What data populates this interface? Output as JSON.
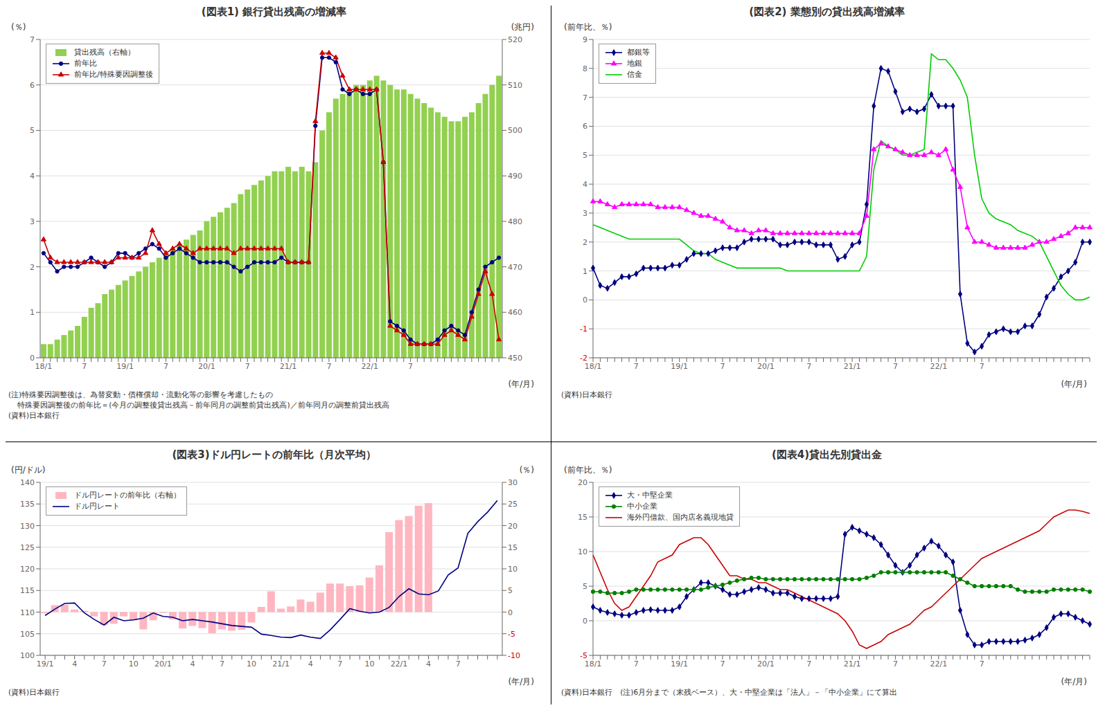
{
  "chart_data": [
    {
      "type": "line",
      "title": "(図表1)  銀行貸出残高の増減率",
      "xlabel": "(年/月)",
      "ylabel": "(％)",
      "y2label": "(兆円)",
      "annotations": [
        "(注)特殊要因調整後は、為替変動・債権償却・流動化等の影響を考慮したもの",
        "    特殊要因調整後の前年比＝(今月の調整後貸出残高－前年同月の調整前貸出残高)／前年同月の調整前貸出残高",
        "(資料)日本銀行"
      ],
      "categories": [
        "18/1",
        null,
        null,
        null,
        null,
        null,
        "7",
        null,
        null,
        null,
        null,
        null,
        "19/1",
        null,
        null,
        null,
        null,
        null,
        "7",
        null,
        null,
        null,
        null,
        null,
        "20/1",
        null,
        null,
        null,
        null,
        null,
        "7",
        null,
        null,
        null,
        null,
        null,
        "21/1",
        null,
        null,
        null,
        null,
        null,
        "7",
        null,
        null,
        null,
        null,
        null,
        "22/1",
        null,
        null,
        null,
        null,
        null,
        "7",
        null,
        null,
        null,
        null,
        null,
        null,
        null,
        null,
        null,
        null,
        null,
        null,
        null
      ],
      "series": [
        {
          "name": "貸出残高（右軸）",
          "type": "bar",
          "axis": "y2",
          "color": "#92D050",
          "values": [
            453,
            453,
            454,
            455,
            456,
            457,
            459,
            461,
            462,
            464,
            465,
            466,
            467,
            468,
            469,
            470,
            471,
            472,
            473,
            474,
            475,
            476,
            477,
            478,
            480,
            481,
            482,
            483,
            484,
            486,
            487,
            488,
            489,
            490,
            491,
            491,
            492,
            491,
            492,
            491,
            493,
            500,
            504,
            507,
            508,
            509,
            510,
            510,
            511,
            512,
            511,
            510,
            509,
            509,
            508,
            507,
            506,
            505,
            504,
            503,
            502,
            502,
            503,
            504,
            506,
            508,
            510,
            512
          ]
        },
        {
          "name": "前年比",
          "color": "#000080",
          "marker": "circle",
          "values": [
            2.3,
            2.1,
            1.9,
            2.0,
            2.0,
            2.0,
            2.1,
            2.2,
            2.1,
            2.0,
            2.1,
            2.3,
            2.3,
            2.2,
            2.3,
            2.4,
            2.5,
            2.4,
            2.2,
            2.3,
            2.4,
            2.3,
            2.2,
            2.1,
            2.1,
            2.1,
            2.1,
            2.1,
            2.0,
            1.9,
            2.0,
            2.1,
            2.1,
            2.1,
            2.1,
            2.2,
            2.1,
            2.1,
            2.1,
            2.1,
            5.1,
            6.6,
            6.6,
            6.5,
            5.9,
            5.8,
            5.9,
            5.8,
            5.8,
            5.9,
            4.3,
            0.8,
            0.7,
            0.6,
            0.4,
            0.3,
            0.3,
            0.3,
            0.4,
            0.6,
            0.7,
            0.6,
            0.5,
            1.0,
            1.5,
            2.0,
            2.1,
            2.2
          ]
        },
        {
          "name": "前年比/特殊要因調整後",
          "color": "#CC0000",
          "marker": "triangle",
          "values": [
            2.6,
            2.2,
            2.1,
            2.1,
            2.1,
            2.1,
            2.1,
            2.1,
            2.1,
            2.1,
            2.1,
            2.2,
            2.2,
            2.2,
            2.2,
            2.3,
            2.8,
            2.5,
            2.3,
            2.4,
            2.5,
            2.4,
            2.3,
            2.4,
            2.4,
            2.4,
            2.4,
            2.4,
            2.3,
            2.4,
            2.4,
            2.4,
            2.4,
            2.4,
            2.4,
            2.4,
            2.1,
            2.1,
            2.1,
            2.1,
            5.2,
            6.7,
            6.7,
            6.6,
            6.2,
            5.9,
            5.9,
            5.9,
            5.9,
            5.9,
            4.3,
            0.7,
            0.6,
            0.5,
            0.3,
            0.3,
            0.3,
            0.3,
            0.3,
            0.5,
            0.6,
            0.5,
            0.4,
            0.9,
            1.4,
            1.9,
            1.4,
            0.4
          ]
        }
      ],
      "ylim": [
        0,
        7
      ],
      "yticks": [
        0,
        1,
        2,
        3,
        4,
        5,
        6,
        7
      ],
      "y2lim": [
        450,
        520
      ],
      "y2ticks": [
        450,
        460,
        470,
        480,
        490,
        500,
        510,
        520
      ],
      "grid": true,
      "legend": "upper left"
    },
    {
      "type": "line",
      "title": "(図表2)  業態別の貸出残高増減率",
      "xlabel": "(年/月)",
      "ylabel": "(前年比、％)",
      "annotations": [
        "(資料)日本銀行"
      ],
      "categories": [
        "18/1",
        null,
        null,
        null,
        null,
        null,
        "7",
        null,
        null,
        null,
        null,
        null,
        "19/1",
        null,
        null,
        null,
        null,
        null,
        "7",
        null,
        null,
        null,
        null,
        null,
        "20/1",
        null,
        null,
        null,
        null,
        null,
        "7",
        null,
        null,
        null,
        null,
        null,
        "21/1",
        null,
        null,
        null,
        null,
        null,
        "7",
        null,
        null,
        null,
        null,
        null,
        "22/1",
        null,
        null,
        null,
        null,
        null,
        "7",
        null,
        null,
        null,
        null,
        null,
        null,
        null,
        null,
        null,
        null,
        null,
        null,
        null,
        null,
        null
      ],
      "series": [
        {
          "name": "都銀等",
          "color": "#000080",
          "marker": "diamond",
          "values": [
            1.1,
            0.5,
            0.4,
            0.6,
            0.8,
            0.8,
            0.9,
            1.1,
            1.1,
            1.1,
            1.1,
            1.2,
            1.2,
            1.4,
            1.6,
            1.6,
            1.6,
            1.7,
            1.8,
            1.8,
            1.8,
            2.0,
            2.1,
            2.1,
            2.1,
            2.1,
            1.9,
            1.9,
            2.0,
            2.0,
            2.0,
            1.9,
            1.9,
            1.9,
            1.4,
            1.5,
            1.9,
            2.0,
            3.3,
            6.7,
            8.0,
            7.9,
            7.2,
            6.5,
            6.6,
            6.5,
            6.6,
            7.1,
            6.7,
            6.7,
            6.7,
            0.2,
            -1.5,
            -1.8,
            -1.6,
            -1.2,
            -1.1,
            -1.0,
            -1.1,
            -1.1,
            -0.9,
            -0.9,
            -0.5,
            0.1,
            0.4,
            0.8,
            1.0,
            1.3,
            2.0,
            2.0
          ]
        },
        {
          "name": "地銀",
          "color": "#FF00FF",
          "marker": "triangle",
          "values": [
            3.4,
            3.4,
            3.3,
            3.2,
            3.3,
            3.3,
            3.3,
            3.3,
            3.3,
            3.2,
            3.2,
            3.2,
            3.2,
            3.1,
            3.0,
            2.9,
            2.9,
            2.8,
            2.7,
            2.5,
            2.4,
            2.4,
            2.3,
            2.4,
            2.4,
            2.3,
            2.3,
            2.3,
            2.3,
            2.3,
            2.3,
            2.3,
            2.3,
            2.3,
            2.3,
            2.3,
            2.3,
            2.3,
            2.9,
            5.2,
            5.4,
            5.3,
            5.2,
            5.1,
            5.0,
            5.0,
            5.0,
            5.1,
            5.0,
            5.2,
            4.5,
            3.9,
            2.5,
            2.0,
            2.0,
            1.9,
            1.8,
            1.8,
            1.8,
            1.8,
            1.8,
            1.9,
            2.0,
            2.0,
            2.1,
            2.2,
            2.3,
            2.5,
            2.5,
            2.5
          ]
        },
        {
          "name": "信金",
          "color": "#00CC00",
          "values": [
            2.6,
            2.5,
            2.4,
            2.3,
            2.2,
            2.1,
            2.1,
            2.1,
            2.1,
            2.1,
            2.1,
            2.1,
            2.1,
            1.9,
            1.7,
            1.6,
            1.6,
            1.4,
            1.3,
            1.2,
            1.1,
            1.1,
            1.1,
            1.1,
            1.1,
            1.1,
            1.1,
            1.0,
            1.0,
            1.0,
            1.0,
            1.0,
            1.0,
            1.0,
            1.0,
            1.0,
            1.0,
            1.0,
            1.5,
            4.5,
            5.5,
            5.3,
            5.2,
            5.0,
            5.0,
            5.1,
            5.2,
            8.5,
            8.3,
            8.3,
            8.0,
            7.6,
            7.0,
            5.0,
            3.5,
            3.0,
            2.8,
            2.7,
            2.6,
            2.4,
            2.3,
            2.2,
            2.0,
            1.5,
            1.0,
            0.5,
            0.2,
            0.0,
            0.0,
            0.1
          ]
        }
      ],
      "ylim": [
        -2,
        9
      ],
      "yticks": [
        -2,
        -1,
        0,
        1,
        2,
        3,
        4,
        5,
        6,
        7,
        8,
        9
      ],
      "grid": true,
      "legend": "upper left"
    },
    {
      "type": "line",
      "title": "(図表3)ドル円レートの前年比（月次平均）",
      "xlabel": "(年/月)",
      "ylabel": "(円/ドル)",
      "y2label": "(％)",
      "annotations": [
        "(資料)日本銀行"
      ],
      "categories": [
        "19/1",
        null,
        null,
        "4",
        null,
        null,
        "7",
        null,
        null,
        "10",
        null,
        null,
        "20/1",
        null,
        null,
        "4",
        null,
        null,
        "7",
        null,
        null,
        "10",
        null,
        null,
        "21/1",
        null,
        null,
        "4",
        null,
        null,
        "7",
        null,
        null,
        "10",
        null,
        null,
        "22/1",
        null,
        null,
        "4",
        null,
        null,
        "7",
        null,
        null,
        null,
        null
      ],
      "series": [
        {
          "name": "ドル円レートの前年比（右軸）",
          "type": "bar",
          "axis": "y2",
          "color": "#FFB6C1",
          "values": [
            -0.3,
            1.6,
            1.7,
            0.6,
            0.3,
            -1.0,
            -3.0,
            -2.7,
            -1.0,
            -1.9,
            -4.0,
            -1.9,
            -0.2,
            -1.7,
            -3.8,
            -3.2,
            -3.7,
            -4.9,
            -4.0,
            -4.3,
            -4.1,
            -2.4,
            1.2,
            4.8,
            0.8,
            1.3,
            2.9,
            2.4,
            4.5,
            6.6,
            6.6,
            6.0,
            6.2,
            8.0,
            10.8,
            18.5,
            21.3,
            22.2,
            24.6,
            25.2,
            null,
            null,
            null,
            null,
            null,
            null,
            null
          ]
        },
        {
          "name": "ドル円レート",
          "color": "#000080",
          "values": [
            109.2,
            110.7,
            112.0,
            112.1,
            109.8,
            108.3,
            107.0,
            108.8,
            108.0,
            108.2,
            108.6,
            109.8,
            109.0,
            108.8,
            108.0,
            108.3,
            108.0,
            107.7,
            107.3,
            106.9,
            106.7,
            106.5,
            104.9,
            104.6,
            104.2,
            104.1,
            104.7,
            104.2,
            103.9,
            105.9,
            108.3,
            110.8,
            110.2,
            109.8,
            110.0,
            111.1,
            113.6,
            115.4,
            114.2,
            114.0,
            114.9,
            118.6,
            120.2,
            128.2,
            130.9,
            133.1,
            135.8
          ]
        }
      ],
      "ylim": [
        100,
        140
      ],
      "yticks": [
        100,
        105,
        110,
        115,
        120,
        125,
        130,
        135,
        140
      ],
      "y2lim": [
        -10,
        30
      ],
      "y2ticks": [
        -10,
        -5,
        0,
        5,
        10,
        15,
        20,
        25,
        30
      ],
      "grid": true,
      "legend": "upper left"
    },
    {
      "type": "line",
      "title": "(図表4)貸出先別貸出金",
      "xlabel": "(年/月)",
      "ylabel": "(前年比、％)",
      "annotations": [
        "(資料)日本銀行　(注)6月分まで（末残ベース）、大・中堅企業は「法人」－「中小企業」にて算出"
      ],
      "categories": [
        "18/1",
        null,
        null,
        null,
        null,
        null,
        "7",
        null,
        null,
        null,
        null,
        null,
        "19/1",
        null,
        null,
        null,
        null,
        null,
        "7",
        null,
        null,
        null,
        null,
        null,
        "20/1",
        null,
        null,
        null,
        null,
        null,
        "7",
        null,
        null,
        null,
        null,
        null,
        "21/1",
        null,
        null,
        null,
        null,
        null,
        "7",
        null,
        null,
        null,
        null,
        null,
        "22/1",
        null,
        null,
        null,
        null,
        null,
        "7",
        null,
        null,
        null,
        null,
        null,
        null,
        null,
        null,
        null,
        null,
        null,
        null,
        null,
        null,
        null
      ],
      "series": [
        {
          "name": "大・中堅企業",
          "color": "#000080",
          "marker": "diamond",
          "values": [
            2.0,
            1.5,
            1.2,
            1.0,
            0.8,
            0.8,
            1.2,
            1.5,
            1.6,
            1.5,
            1.5,
            1.5,
            2.0,
            3.5,
            4.5,
            5.5,
            5.5,
            5.0,
            4.5,
            3.8,
            3.8,
            4.2,
            4.5,
            4.8,
            4.5,
            4.0,
            4.0,
            4.0,
            3.5,
            3.2,
            3.2,
            3.2,
            3.2,
            3.2,
            3.5,
            12.5,
            13.5,
            13.0,
            12.5,
            12.0,
            11.0,
            9.5,
            8.0,
            7.0,
            8.0,
            9.5,
            10.5,
            11.5,
            10.8,
            9.5,
            8.5,
            1.5,
            -2.0,
            -3.5,
            -3.5,
            -3.0,
            -3.0,
            -3.0,
            -3.0,
            -3.0,
            -2.8,
            -2.5,
            -2.0,
            -1.0,
            0.5,
            1.0,
            1.0,
            0.5,
            0.0,
            -0.5
          ]
        },
        {
          "name": "中小企業",
          "color": "#008000",
          "marker": "circle",
          "values": [
            4.2,
            4.2,
            4.0,
            4.0,
            4.0,
            4.2,
            4.5,
            4.5,
            4.5,
            4.5,
            4.5,
            4.5,
            4.5,
            4.5,
            4.5,
            4.5,
            4.8,
            5.0,
            5.2,
            5.5,
            5.8,
            6.0,
            6.2,
            6.2,
            6.0,
            6.0,
            6.0,
            6.0,
            6.0,
            6.0,
            6.0,
            6.0,
            6.0,
            6.0,
            6.0,
            6.0,
            6.0,
            6.0,
            6.2,
            6.5,
            7.0,
            7.0,
            7.0,
            7.0,
            7.0,
            7.0,
            7.0,
            7.0,
            7.0,
            7.0,
            6.5,
            6.0,
            5.5,
            5.0,
            5.0,
            5.0,
            5.0,
            5.0,
            5.0,
            4.5,
            4.2,
            4.2,
            4.2,
            4.2,
            4.5,
            4.5,
            4.5,
            4.5,
            4.5,
            4.2
          ]
        },
        {
          "name": "海外円借款、国内店名義現地貸",
          "color": "#CC0000",
          "values": [
            9.5,
            7.0,
            4.5,
            2.5,
            1.5,
            2.0,
            3.5,
            5.0,
            6.5,
            8.5,
            9.0,
            9.5,
            11.0,
            11.5,
            12.0,
            12.0,
            11.0,
            9.5,
            8.0,
            6.5,
            6.5,
            6.0,
            6.0,
            5.5,
            5.5,
            5.0,
            4.5,
            4.5,
            4.0,
            3.5,
            3.0,
            2.5,
            2.0,
            1.5,
            1.0,
            0.0,
            -1.5,
            -3.5,
            -4.0,
            -3.5,
            -3.0,
            -2.0,
            -1.5,
            -1.0,
            -0.5,
            0.5,
            1.5,
            2.0,
            3.0,
            4.0,
            5.0,
            6.0,
            7.0,
            8.0,
            9.0,
            9.5,
            10.0,
            10.5,
            11.0,
            11.5,
            12.0,
            12.5,
            13.0,
            14.0,
            15.0,
            15.5,
            16.0,
            16.0,
            15.8,
            15.5
          ]
        }
      ],
      "ylim": [
        -5,
        20
      ],
      "yticks": [
        -5,
        0,
        5,
        10,
        15,
        20
      ],
      "grid": true,
      "legend": "upper left"
    }
  ]
}
